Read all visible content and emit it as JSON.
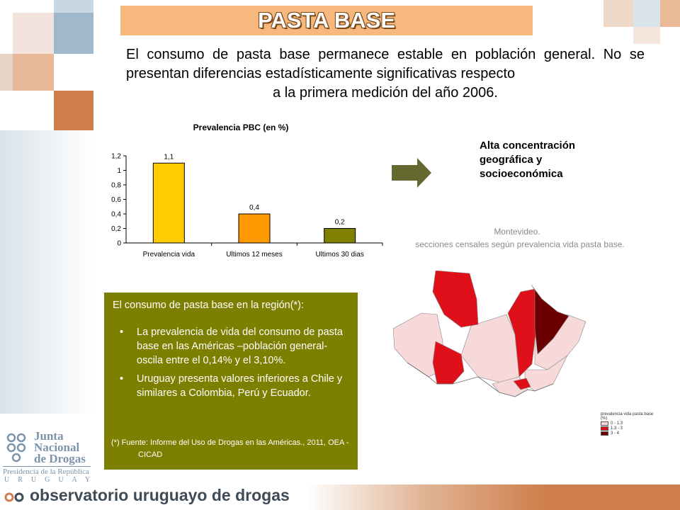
{
  "header": {
    "title": "PASTA BASE",
    "intro_line1": "El consumo de pasta base permanece estable en población general. No se presentan diferencias estadísticamente significativas respecto",
    "intro_line2": "a la primera medición del año 2006."
  },
  "chart_data": {
    "type": "bar",
    "title": "Prevalencia PBC (en %)",
    "categories": [
      "Prevalencia vida",
      "Ultimos 12 meses",
      "Ultimos 30 dias"
    ],
    "values": [
      1.1,
      0.4,
      0.2
    ],
    "data_labels": [
      "1,1",
      "0,4",
      "0,2"
    ],
    "bar_colors": [
      "#ffcc00",
      "#ff9900",
      "#808000"
    ],
    "yticks": [
      "0",
      "0,2",
      "0,4",
      "0,6",
      "0,8",
      "1",
      "1,2"
    ],
    "ylim": [
      0,
      1.2
    ],
    "grid": false,
    "legend": "none"
  },
  "concentration": {
    "line1": "Alta concentración",
    "line2": "geográfica y",
    "line3": "socioeconómica"
  },
  "region": {
    "lead": "El consumo de pasta base en la región(*):",
    "bullet": "•",
    "items": [
      "La prevalencia de vida del consumo de pasta base en las Américas –población general- oscila entre el 0,14% y el 3,10%.",
      "Uruguay presenta valores inferiores a Chile y similares a Colombia, Perú y Ecuador."
    ],
    "source_line1": "(*) Fuente: Informe del Uso de Drogas en las Américas., 2011, OEA -",
    "source_line2": "CICAD"
  },
  "map": {
    "title1": "Montevideo.",
    "title2": "secciones  censales  según prevalencia vida pasta base.",
    "legend_title": "prevalencia vida pasta base (%)",
    "legend_items": [
      {
        "label": "0 - 1.3",
        "color": "#f7d9d9"
      },
      {
        "label": "1.3 - 3",
        "color": "#e0101b"
      },
      {
        "label": "3 - 4",
        "color": "#6b0000"
      }
    ]
  },
  "footer": {
    "logo_line1": "Junta",
    "logo_line2": "Nacional",
    "logo_line3": "de Drogas",
    "logo_pres": "Presidencia de la República",
    "logo_country": "URUGUAY",
    "observatory": "observatorio uruguayo de drogas"
  },
  "colors": {
    "title_bar": "#f7b87e",
    "region_box": "#7d7f00",
    "arrow": "#66692f",
    "footer_orange": "#cf7f4c"
  }
}
